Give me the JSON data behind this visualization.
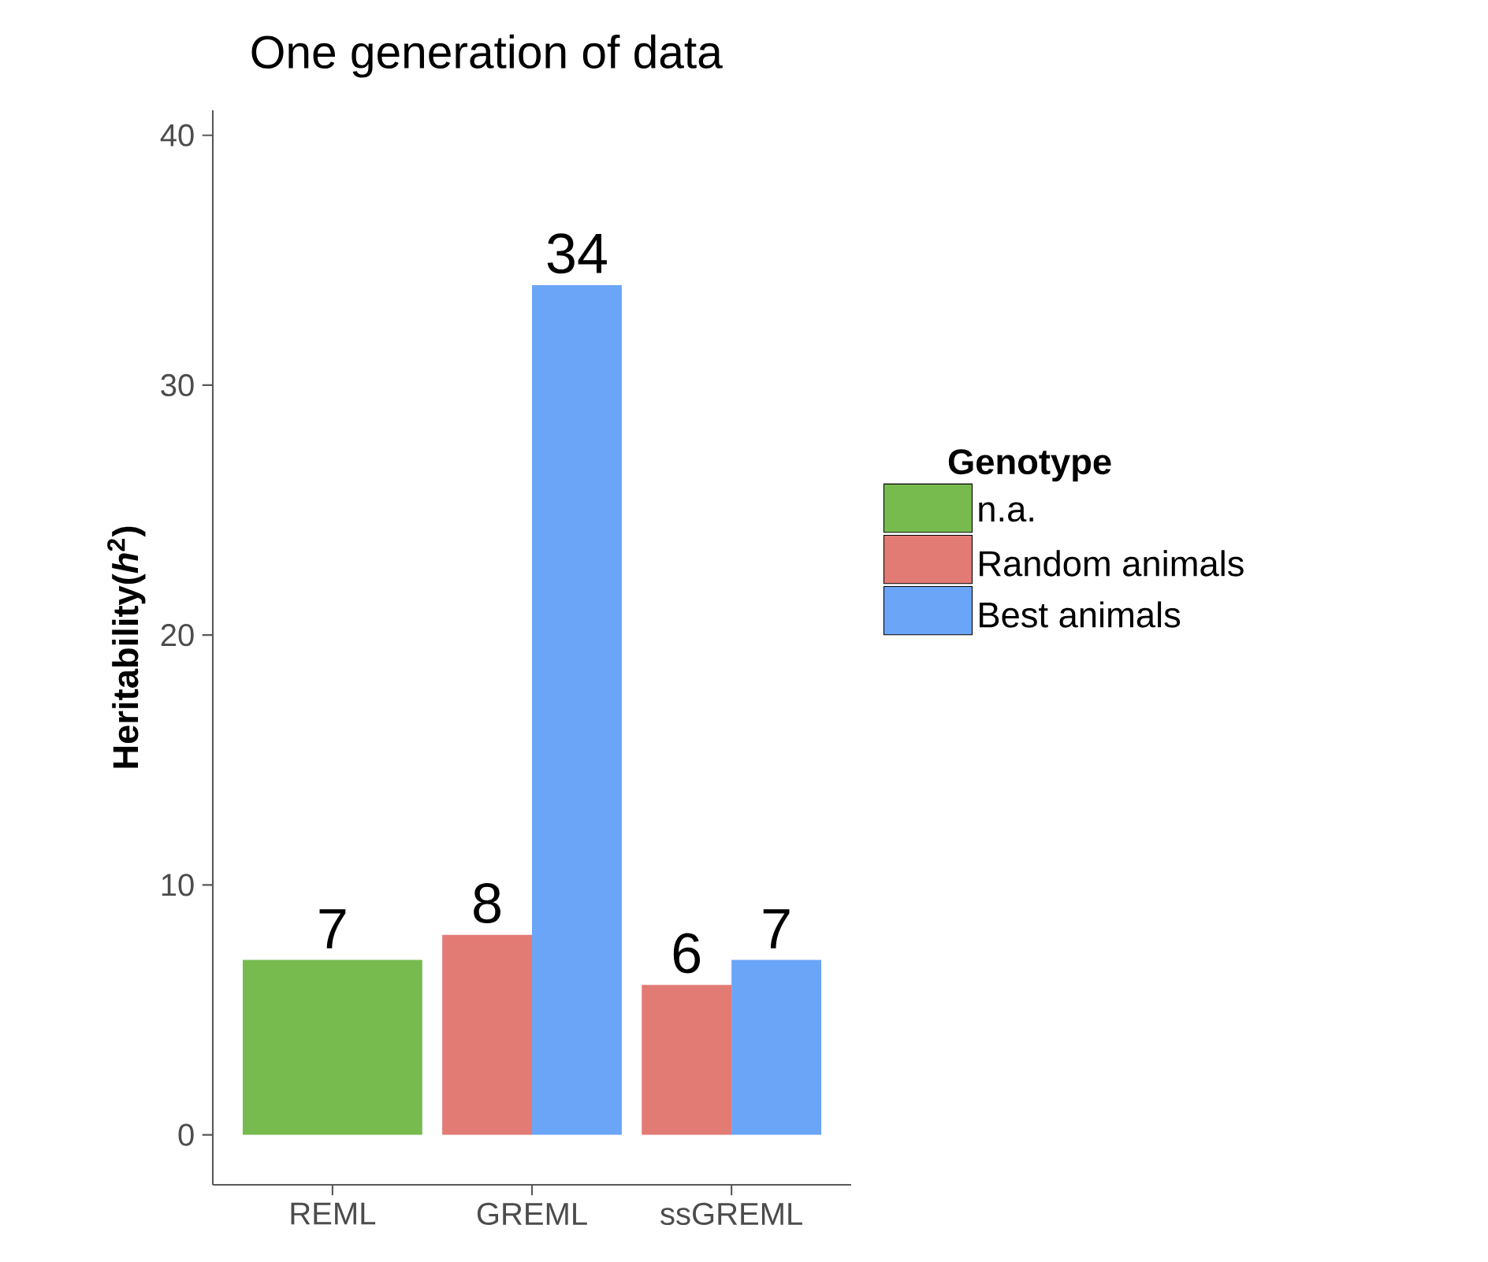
{
  "chart_data": {
    "type": "bar",
    "title": "One generation of data",
    "ylabel": "Heritability(*h*$^{2}$)",
    "legend_title": "Genotype",
    "categories": [
      "REML",
      "GREML",
      "ssGREML"
    ],
    "series": [
      {
        "name": "n.a.",
        "color": "#77bb4f",
        "values": [
          7,
          null,
          null
        ]
      },
      {
        "name": "Random animals",
        "color": "#e27b74",
        "values": [
          null,
          8,
          6
        ]
      },
      {
        "name": "Best animals",
        "color": "#6ba5f7",
        "values": [
          null,
          34,
          7
        ]
      }
    ],
    "ylim": [
      -2,
      41
    ],
    "yticks": [
      0,
      10,
      20,
      30,
      40
    ],
    "grid": false,
    "legend": "right",
    "data_labels": true
  }
}
